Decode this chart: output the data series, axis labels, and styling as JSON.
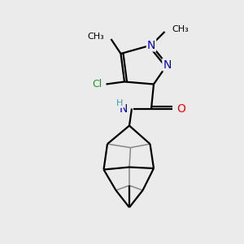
{
  "bg_color": "#ebebeb",
  "bond_color": "#000000",
  "bond_width": 1.6,
  "atom_colors": {
    "N": "#0000cc",
    "O": "#ff0000",
    "Cl": "#00aa00",
    "C": "#000000",
    "H": "#4499aa"
  },
  "font_size": 9,
  "fig_size": [
    3.0,
    3.0
  ],
  "dpi": 100,
  "xlim": [
    0,
    10
  ],
  "ylim": [
    0,
    10
  ]
}
